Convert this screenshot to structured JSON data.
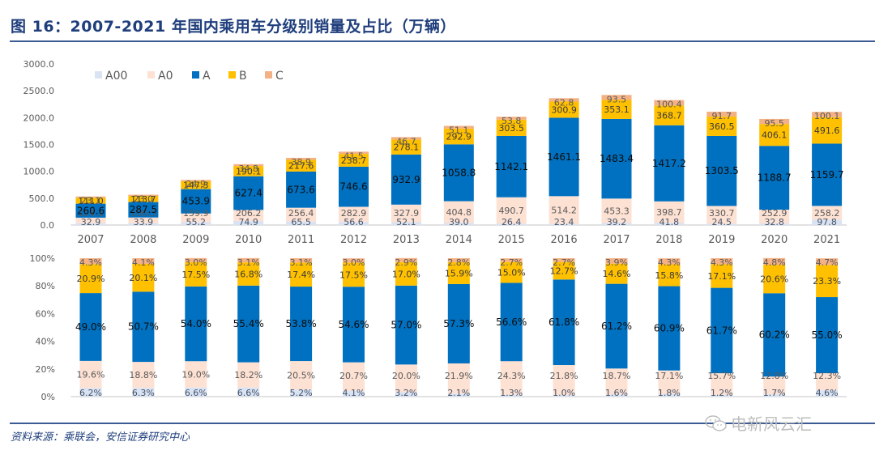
{
  "header": {
    "title": "图 16：2007-2021 年国内乘用车分级别销量及占比（万辆）"
  },
  "footer": {
    "source": "资料来源：乘联会，安信证券研究中心",
    "watermark": "电新风云汇",
    "watermark_icon": "wechat-icon"
  },
  "colors": {
    "A00": "#dae3f3",
    "A0": "#fde1d3",
    "A": "#0070c0",
    "B": "#ffc000",
    "C": "#f4b183",
    "axis": "#d9d9d9",
    "text": "#595959"
  },
  "chart_data": [
    {
      "type": "bar",
      "stacked": true,
      "title": "",
      "xlabel": "",
      "ylabel": "",
      "ylim": [
        0,
        3000
      ],
      "yticks": [
        "0.0",
        "500.0",
        "1000.0",
        "1500.0",
        "2000.0",
        "2500.0",
        "3000.0"
      ],
      "grid": false,
      "legend": "top-left",
      "categories": [
        "2007",
        "2008",
        "2009",
        "2010",
        "2011",
        "2012",
        "2013",
        "2014",
        "2015",
        "2016",
        "2017",
        "2018",
        "2019",
        "2020",
        "2021"
      ],
      "series": [
        {
          "name": "A00",
          "values": [
            32.9,
            33.9,
            55.2,
            74.9,
            65.5,
            56.6,
            52.1,
            39.0,
            26.4,
            23.4,
            39.2,
            41.8,
            24.5,
            32.8,
            97.8
          ]
        },
        {
          "name": "A0",
          "values": [
            104.1,
            106.5,
            159.9,
            206.2,
            256.4,
            282.9,
            327.9,
            404.8,
            490.7,
            514.2,
            453.3,
            398.7,
            330.7,
            252.9,
            258.2
          ]
        },
        {
          "name": "A",
          "values": [
            260.6,
            287.5,
            453.9,
            627.4,
            673.6,
            746.6,
            932.9,
            1058.8,
            1142.1,
            1461.1,
            1483.4,
            1417.2,
            1303.5,
            1188.7,
            1159.7
          ]
        },
        {
          "name": "B",
          "values": [
            111.0,
            113.7,
            147.3,
            190.1,
            217.6,
            238.7,
            278.1,
            292.9,
            303.5,
            300.9,
            353.1,
            368.7,
            360.5,
            406.1,
            491.6
          ]
        },
        {
          "name": "C",
          "values": [
            23.1,
            23.0,
            24.9,
            34.8,
            38.9,
            41.5,
            46.7,
            51.1,
            53.8,
            62.8,
            93.5,
            100.4,
            91.7,
            95.5,
            100.1
          ]
        }
      ]
    },
    {
      "type": "bar",
      "stacked": true,
      "percent": true,
      "title": "",
      "xlabel": "",
      "ylabel": "",
      "ylim": [
        0,
        100
      ],
      "yticks": [
        "0%",
        "20%",
        "40%",
        "60%",
        "80%",
        "100%"
      ],
      "grid": false,
      "categories": [
        "2007",
        "2008",
        "2009",
        "2010",
        "2011",
        "2012",
        "2013",
        "2014",
        "2015",
        "2016",
        "2017",
        "2018",
        "2019",
        "2020",
        "2021"
      ],
      "series": [
        {
          "name": "A00",
          "values": [
            6.2,
            6.3,
            6.6,
            6.6,
            5.2,
            4.1,
            3.2,
            2.1,
            1.3,
            1.0,
            1.6,
            1.8,
            1.2,
            1.7,
            4.6
          ]
        },
        {
          "name": "A0",
          "values": [
            19.6,
            18.8,
            19.0,
            18.2,
            20.5,
            20.7,
            20.0,
            21.9,
            24.3,
            21.8,
            18.7,
            17.1,
            15.7,
            12.8,
            12.3
          ]
        },
        {
          "name": "A",
          "values": [
            49.0,
            50.7,
            54.0,
            55.4,
            53.8,
            54.6,
            57.0,
            57.3,
            56.6,
            61.8,
            61.2,
            60.9,
            61.7,
            60.2,
            55.0
          ]
        },
        {
          "name": "B",
          "values": [
            20.9,
            20.1,
            17.5,
            16.8,
            17.4,
            17.5,
            17.0,
            15.9,
            15.0,
            12.7,
            14.6,
            15.8,
            17.1,
            20.6,
            23.3
          ]
        },
        {
          "name": "C",
          "values": [
            4.3,
            4.1,
            3.0,
            3.1,
            3.1,
            3.0,
            2.9,
            2.8,
            2.7,
            2.7,
            3.9,
            4.3,
            4.3,
            4.8,
            4.7
          ]
        }
      ]
    }
  ]
}
